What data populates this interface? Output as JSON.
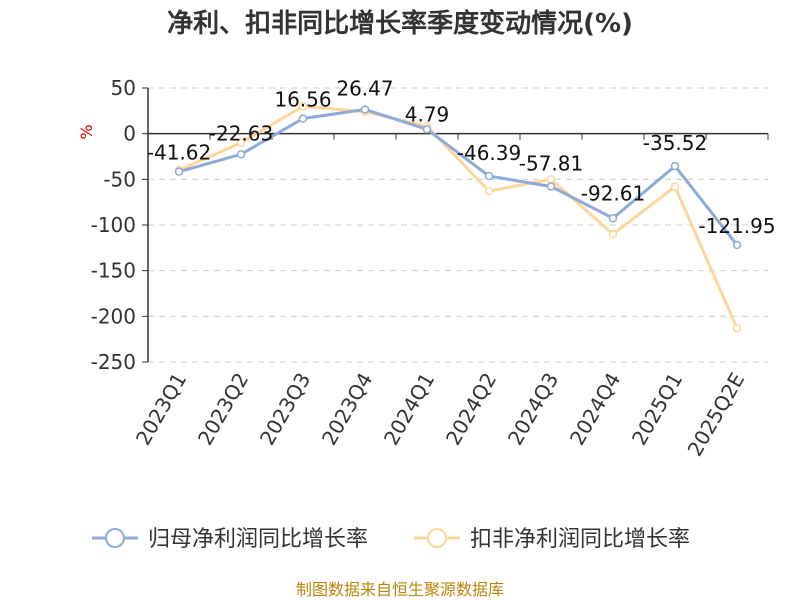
{
  "chart_data": {
    "type": "line",
    "title": "净利、扣非同比增长率季度变动情况(%)",
    "ylabel": "%",
    "categories": [
      "2023Q1",
      "2023Q2",
      "2023Q3",
      "2023Q4",
      "2024Q1",
      "2024Q2",
      "2024Q3",
      "2024Q4",
      "2025Q1",
      "2025Q2E"
    ],
    "ylim": [
      -250,
      50
    ],
    "yticks": [
      50,
      0,
      -50,
      -100,
      -150,
      -200,
      -250
    ],
    "grid": true,
    "legend_position": "bottom",
    "series": [
      {
        "name": "归母净利润同比增长率",
        "color": "#8eaad8",
        "values": [
          -41.62,
          -22.63,
          16.56,
          26.47,
          4.79,
          -46.39,
          -57.81,
          -92.61,
          -35.52,
          -121.95
        ],
        "labels": [
          "-41.62",
          "-22.63",
          "16.56",
          "26.47",
          "4.79",
          "-46.39",
          "-57.81",
          "-92.61",
          "-35.52",
          "-121.95"
        ]
      },
      {
        "name": "扣非净利润同比增长率",
        "color": "#fcd79b",
        "values": [
          -40,
          -10,
          30,
          24,
          8,
          -63,
          -50,
          -110,
          -58,
          -213
        ]
      }
    ],
    "source": "制图数据来自恒生聚源数据库"
  }
}
